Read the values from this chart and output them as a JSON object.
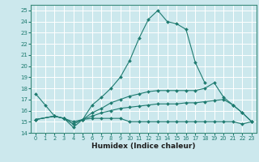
{
  "xlabel": "Humidex (Indice chaleur)",
  "bg_color": "#cce8ed",
  "grid_color": "#ffffff",
  "line_color": "#1e7b70",
  "xlim": [
    -0.5,
    23.5
  ],
  "ylim": [
    14,
    25.5
  ],
  "yticks": [
    14,
    15,
    16,
    17,
    18,
    19,
    20,
    21,
    22,
    23,
    24,
    25
  ],
  "xticks": [
    0,
    1,
    2,
    3,
    4,
    5,
    6,
    7,
    8,
    9,
    10,
    11,
    12,
    13,
    14,
    15,
    16,
    17,
    18,
    19,
    20,
    21,
    22,
    23
  ],
  "series": [
    {
      "x": [
        0,
        1,
        2,
        3,
        4,
        5,
        6,
        7,
        8,
        9,
        10,
        11,
        12,
        13,
        14,
        15,
        16,
        17,
        18,
        19,
        20,
        21,
        22,
        23
      ],
      "y": [
        17.5,
        16.5,
        15.5,
        15.3,
        14.5,
        15.2,
        16.5,
        17.2,
        18.0,
        19.0,
        20.5,
        22.5,
        24.2,
        25.0,
        24.0,
        23.8,
        23.3,
        20.3,
        18.5,
        null,
        null,
        null,
        null,
        null
      ]
    },
    {
      "x": [
        0,
        2,
        3,
        4,
        5,
        6,
        7,
        8,
        9,
        10,
        11,
        12,
        13,
        14,
        15,
        16,
        17,
        18,
        19,
        20,
        21,
        22,
        23
      ],
      "y": [
        15.2,
        15.5,
        15.3,
        15.0,
        15.2,
        15.8,
        16.2,
        16.7,
        17.0,
        17.3,
        17.5,
        17.7,
        17.8,
        17.8,
        17.8,
        17.8,
        17.8,
        18.0,
        18.5,
        17.2,
        16.5,
        15.8,
        15.0
      ]
    },
    {
      "x": [
        0,
        2,
        3,
        4,
        5,
        6,
        7,
        8,
        9,
        10,
        11,
        12,
        13,
        14,
        15,
        16,
        17,
        18,
        19,
        20,
        21,
        22,
        23
      ],
      "y": [
        15.2,
        15.5,
        15.3,
        14.8,
        15.2,
        15.5,
        15.8,
        16.0,
        16.2,
        16.3,
        16.4,
        16.5,
        16.6,
        16.6,
        16.6,
        16.7,
        16.7,
        16.8,
        16.9,
        17.0,
        16.5,
        15.8,
        15.0
      ]
    },
    {
      "x": [
        0,
        2,
        3,
        4,
        5,
        6,
        7,
        8,
        9,
        10,
        11,
        12,
        13,
        14,
        15,
        16,
        17,
        18,
        19,
        20,
        21,
        22,
        23
      ],
      "y": [
        15.2,
        15.5,
        15.3,
        14.8,
        15.2,
        15.3,
        15.3,
        15.3,
        15.3,
        15.0,
        15.0,
        15.0,
        15.0,
        15.0,
        15.0,
        15.0,
        15.0,
        15.0,
        15.0,
        15.0,
        15.0,
        14.8,
        15.0
      ]
    }
  ]
}
